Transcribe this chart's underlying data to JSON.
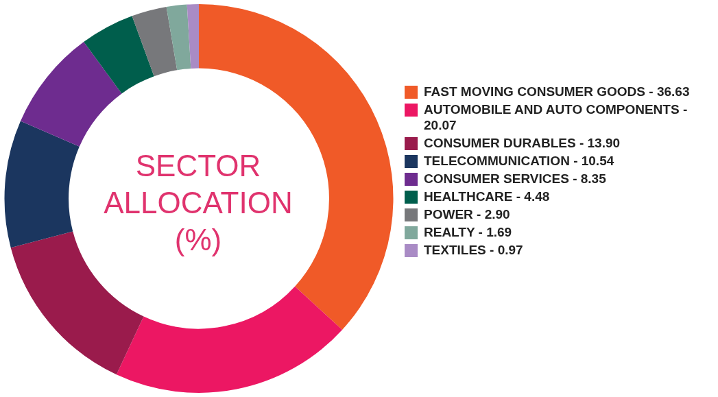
{
  "chart_data": {
    "type": "donut",
    "title": "SECTOR ALLOCATION (%)",
    "categories": [
      "FAST MOVING CONSUMER GOODS - 36.63",
      "AUTOMOBILE AND AUTO COMPONENTS - 20.07",
      "CONSUMER DURABLES - 13.90",
      "TELECOMMUNICATION - 10.54",
      "CONSUMER SERVICES - 8.35",
      "HEALTHCARE - 4.48",
      "POWER - 2.90",
      "REALTY - 1.69",
      "TEXTILES - 0.97"
    ],
    "values": [
      36.63,
      20.07,
      13.9,
      10.54,
      8.35,
      4.48,
      2.9,
      1.69,
      0.97
    ],
    "colors": [
      "#f05a28",
      "#ec1763",
      "#9a1b4c",
      "#1b365f",
      "#6e2c8f",
      "#005e4c",
      "#77787b",
      "#80a89c",
      "#a98bc5"
    ],
    "legend": "right"
  }
}
